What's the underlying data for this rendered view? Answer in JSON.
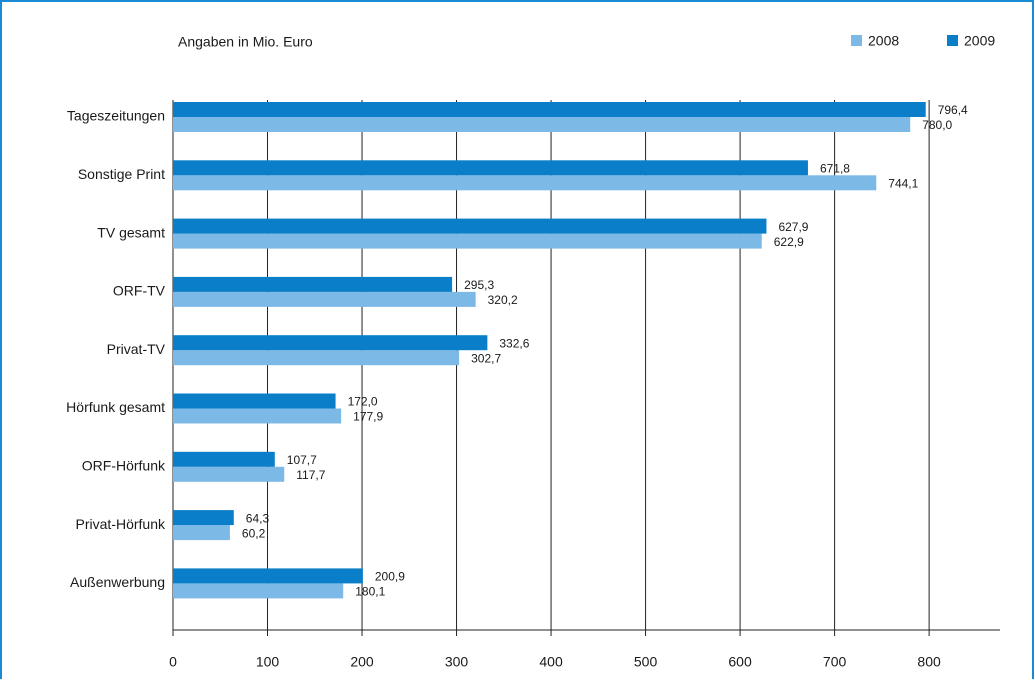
{
  "chart_data": {
    "type": "bar",
    "orientation": "horizontal",
    "subtitle": "Angaben in Mio. Euro",
    "categories": [
      "Tageszeitungen",
      "Sonstige Print",
      "TV gesamt",
      "ORF-TV",
      "Privat-TV",
      "Hörfunk gesamt",
      "ORF-Hörfunk",
      "Privat-Hörfunk",
      "Außenwerbung"
    ],
    "series": [
      {
        "name": "2008",
        "color": "#7db9e6",
        "values": [
          780.0,
          744.1,
          622.9,
          320.2,
          302.7,
          177.9,
          117.7,
          60.2,
          180.1
        ],
        "value_labels": [
          "780,0",
          "744,1",
          "622,9",
          "320,2",
          "302,7",
          "177,9",
          "117,7",
          "60,2",
          "180,1"
        ]
      },
      {
        "name": "2009",
        "color": "#0a7ec8",
        "values": [
          796.4,
          671.8,
          627.9,
          295.3,
          332.6,
          172.0,
          107.7,
          64.3,
          200.9
        ],
        "value_labels": [
          "796,4",
          "671,8",
          "627,9",
          "295,3",
          "332,6",
          "172,0",
          "107,7",
          "64,3",
          "200,9"
        ]
      }
    ],
    "xlim": [
      0,
      875
    ],
    "xticks": [
      0,
      100,
      200,
      300,
      400,
      500,
      600,
      700,
      800
    ],
    "grid": true,
    "legend": "top right"
  }
}
